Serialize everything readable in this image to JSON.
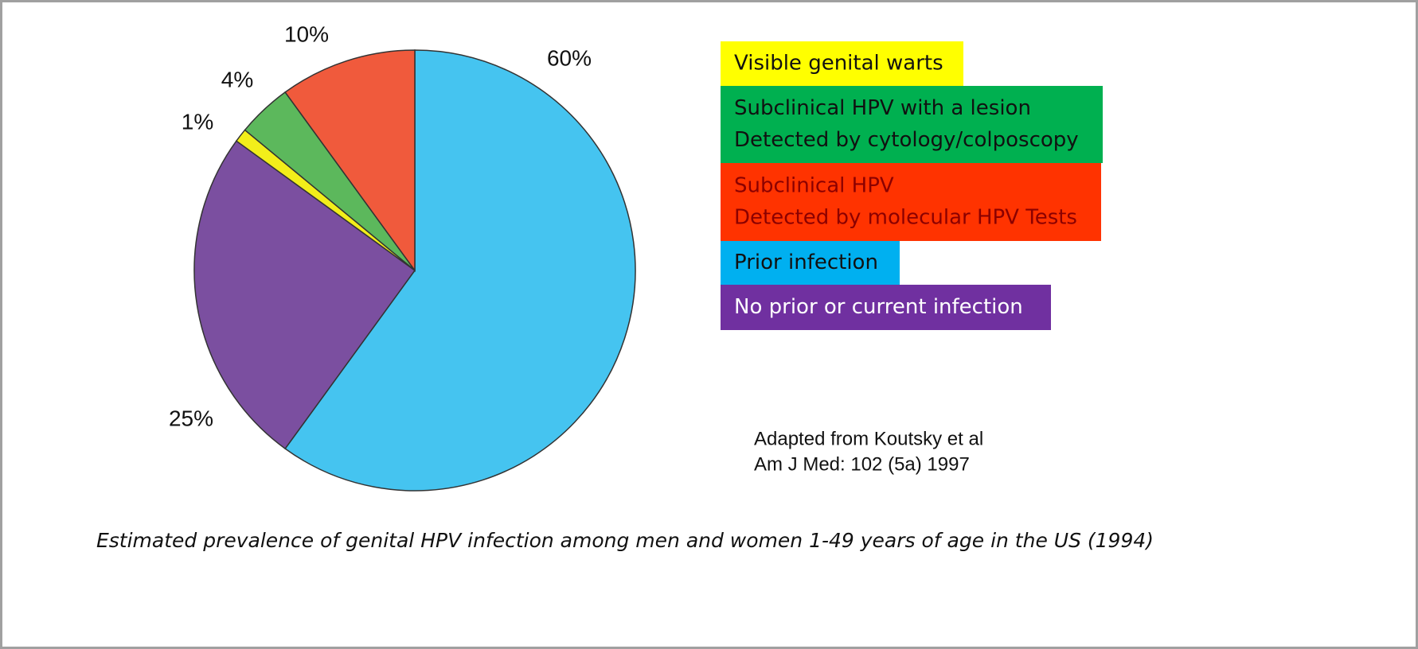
{
  "chart_data": {
    "type": "pie",
    "categories": [
      [
        "Prior infection"
      ],
      [
        "No prior or current infection"
      ],
      [
        "Visible genital warts"
      ],
      [
        "Subclinical HPV with a lesion",
        "Detected by cytology/colposcopy"
      ],
      [
        "Subclinical HPV",
        "Detected by molecular HPV Tests"
      ]
    ],
    "values": [
      60,
      25,
      1,
      4,
      10
    ],
    "value_labels": [
      "60%",
      "25%",
      "1%",
      "4%",
      "10%"
    ],
    "colors": [
      "#45c4f0",
      "#7b4fa0",
      "#f2ee1a",
      "#5cb85c",
      "#f05a3c"
    ],
    "legend_colors": [
      "#00b0f0",
      "#7030a0",
      "#ffff00",
      "#00b050",
      "#ff3300"
    ],
    "source": [
      "Adapted from Koutsky et al",
      "Am J Med: 102 (5a) 1997"
    ],
    "caption": "Estimated prevalence of genital HPV infection among men and women 1-49 years of age in the US (1994)"
  }
}
